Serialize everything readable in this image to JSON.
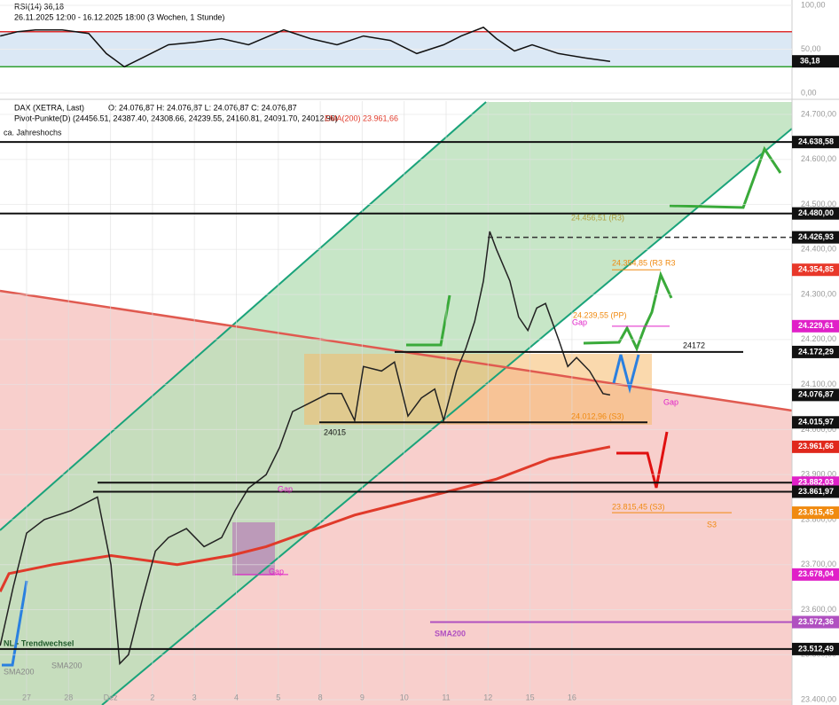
{
  "chart_data": {
    "type": "line",
    "title": "ca. Jahreshochs",
    "rsi": {
      "title": "RSI(14) 36,18",
      "subtitle": "26.11.2025 12:00 - 16.12.2025 18:00  (3 Wochen, 1 Stunde)",
      "ylim": [
        0,
        100
      ],
      "yticks": [
        {
          "value": 100,
          "label": "100,00"
        },
        {
          "value": 50,
          "label": "50,00"
        },
        {
          "value": 0,
          "label": "0,00"
        }
      ],
      "bands": [
        70,
        30
      ],
      "last_label": "36,18",
      "color": "#111111",
      "x": [
        -0.63,
        -0.21,
        0.21,
        0.85,
        1.48,
        1.9,
        2.33,
        2.75,
        3.38,
        4.02,
        4.65,
        5.29,
        6.13,
        6.77,
        7.4,
        8.03,
        8.67,
        9.3,
        9.94,
        10.36,
        10.89,
        11.2,
        11.63,
        12.05,
        12.68,
        13.32,
        13.91
      ],
      "values": [
        65,
        70,
        72,
        72,
        68,
        45,
        30,
        40,
        55,
        58,
        62,
        55,
        72,
        62,
        55,
        65,
        60,
        45,
        55,
        65,
        75,
        62,
        48,
        55,
        45,
        40,
        36.18
      ]
    },
    "header": {
      "instrument": "DAX (XETRA, Last)",
      "ohlc": "O: 24.076,87  H: 24.076,87  L: 24.076,87  C: 24.076,87",
      "pivots": "Pivot-Punkte(D)  (24456.51, 24387.40, 24308.66, 24239.55, 24160.81, 24091.70, 24012.96)",
      "ema": "EMA(200)  23.961,66"
    },
    "xlim": [
      -0.634,
      18.245
    ],
    "xticks": [
      {
        "value": 0,
        "label": "27"
      },
      {
        "value": 1,
        "label": "28"
      },
      {
        "value": 2,
        "label": "Dez"
      },
      {
        "value": 3,
        "label": "2"
      },
      {
        "value": 4,
        "label": "3"
      },
      {
        "value": 5,
        "label": "4"
      },
      {
        "value": 6,
        "label": "5"
      },
      {
        "value": 7,
        "label": "8"
      },
      {
        "value": 8,
        "label": "9"
      },
      {
        "value": 9,
        "label": "10"
      },
      {
        "value": 10,
        "label": "11"
      },
      {
        "value": 11,
        "label": "12"
      },
      {
        "value": 12,
        "label": "15"
      },
      {
        "value": 13,
        "label": "16"
      }
    ],
    "ylim": [
      23400,
      24700
    ],
    "yticks": [
      {
        "value": 24700,
        "label": "24.700,00"
      },
      {
        "value": 24600,
        "label": "24.600,00"
      },
      {
        "value": 24500,
        "label": "24.500,00"
      },
      {
        "value": 24400,
        "label": "24.400,00"
      },
      {
        "value": 24300,
        "label": "24.300,00"
      },
      {
        "value": 24200,
        "label": "24.200,00"
      },
      {
        "value": 24100,
        "label": "24.100,00"
      },
      {
        "value": 24000,
        "label": "24.000,00"
      },
      {
        "value": 23900,
        "label": "23.900,00"
      },
      {
        "value": 23800,
        "label": "23.800,00"
      },
      {
        "value": 23700,
        "label": "23.700,00"
      },
      {
        "value": 23600,
        "label": "23.600,00"
      },
      {
        "value": 23500,
        "label": "23.500,00"
      },
      {
        "value": 23400,
        "label": "23.400,00"
      }
    ],
    "series": [
      {
        "name": "DAX (XETRA, Last)",
        "color": "#222222",
        "x": [
          -0.63,
          -0.32,
          0,
          0.42,
          1.06,
          1.69,
          2.01,
          2.22,
          2.43,
          2.75,
          3.07,
          3.38,
          3.81,
          4.23,
          4.65,
          4.97,
          5.29,
          5.71,
          6.03,
          6.34,
          6.77,
          7.19,
          7.51,
          7.82,
          8.03,
          8.46,
          8.77,
          9.09,
          9.41,
          9.73,
          9.94,
          10.25,
          10.47,
          10.68,
          10.89,
          11.04,
          11.2,
          11.52,
          11.73,
          11.95,
          12.16,
          12.37,
          12.68,
          12.9,
          13.11,
          13.42,
          13.74,
          13.91
        ],
        "values": [
          23520,
          23650,
          23770,
          23800,
          23820,
          23850,
          23700,
          23480,
          23500,
          23620,
          23730,
          23760,
          23780,
          23740,
          23760,
          23820,
          23870,
          23900,
          23960,
          24040,
          24060,
          24080,
          24080,
          24020,
          24140,
          24130,
          24150,
          24030,
          24070,
          24090,
          24020,
          24130,
          24180,
          24240,
          24330,
          24440,
          24400,
          24330,
          24250,
          24220,
          24270,
          24280,
          24200,
          24140,
          24160,
          24130,
          24080,
          24076.87
        ]
      },
      {
        "name": "EMA(200)",
        "color": "#e03a2a",
        "x": [
          -0.63,
          -0.42,
          0.63,
          2.01,
          3.59,
          4.86,
          5.71,
          7.82,
          9.94,
          11.2,
          12.47,
          13.91
        ],
        "values": [
          23640,
          23680,
          23700,
          23720,
          23700,
          23720,
          23740,
          23810,
          23860,
          23890,
          23935,
          23961.66
        ]
      }
    ],
    "levels": [
      {
        "value": 24638.58,
        "label": "24.638,58",
        "color": "#111111"
      },
      {
        "value": 24480,
        "label": "24.480,00",
        "color": "#111111"
      },
      {
        "value": 24426.93,
        "label": "24.426,93",
        "color": "#111111"
      },
      {
        "value": 24354.85,
        "label": "24.354,85",
        "color": "#e8382a"
      },
      {
        "value": 24229.61,
        "label": "24.229,61",
        "color": "#e020c8"
      },
      {
        "value": 24172.29,
        "label": "24.172,29",
        "color": "#111111"
      },
      {
        "value": 24076.87,
        "label": "24.076,87",
        "color": "#111111"
      },
      {
        "value": 24015.97,
        "label": "24.015,97",
        "color": "#111111"
      },
      {
        "value": 23961.66,
        "label": "23.961,66",
        "color": "#e0281c"
      },
      {
        "value": 23882.03,
        "label": "23.882,03",
        "color": "#e020c8"
      },
      {
        "value": 23861.97,
        "label": "23.861,97",
        "color": "#111111"
      },
      {
        "value": 23815.45,
        "label": "23.815,45",
        "color": "#f08a10"
      },
      {
        "value": 23678.04,
        "label": "23.678,04",
        "color": "#e020c8"
      },
      {
        "value": 23572.36,
        "label": "23.572,36",
        "color": "#b050c0"
      },
      {
        "value": 23512.49,
        "label": "23.512,49",
        "color": "#111111"
      }
    ],
    "annotations": [
      "ca. Jahreshochs",
      "24172",
      "24015",
      "R3",
      "S3",
      "SMA200",
      "NL - Trendwechsel",
      "24.456,51 (R3)",
      "24.354,85 (R3",
      "24.239,55 (PP)",
      "24.012,96 (S3)",
      "23.815,45 (S3)",
      "Gap",
      "Gap",
      "Gap",
      "Gap",
      "SMA200",
      "SMA200"
    ]
  }
}
